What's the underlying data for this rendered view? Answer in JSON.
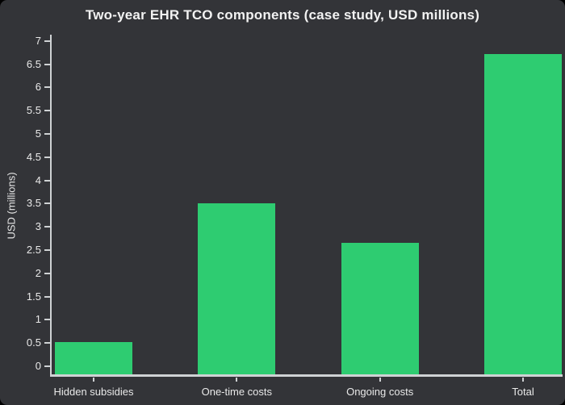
{
  "chart_data": {
    "type": "bar",
    "title": "Two-year EHR TCO components (case study, USD millions)",
    "ylabel": "USD (millions)",
    "xlabel": "",
    "categories": [
      "Hidden subsidies",
      "One-time costs",
      "Ongoing costs",
      "Total"
    ],
    "values": [
      0.52,
      3.5,
      2.66,
      6.72
    ],
    "yticks": [
      0,
      0.5,
      1,
      1.5,
      2,
      2.5,
      3,
      3.5,
      4,
      4.5,
      5,
      5.5,
      6,
      6.5,
      7
    ],
    "ylim": [
      -0.2,
      7.1
    ],
    "grid": false,
    "legend": "none",
    "colors": {
      "bar": "#2ecc71",
      "background": "#333438",
      "axis": "#cfd2d4",
      "tick_text": "#e9e9e9",
      "title_text": "#f2f2f2"
    }
  }
}
